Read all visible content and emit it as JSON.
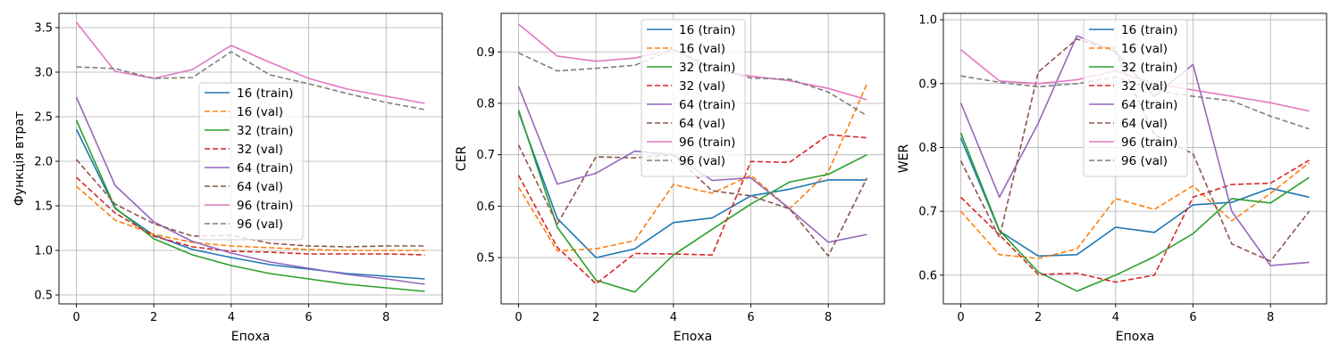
{
  "colors": {
    "c16": "#1f77b4",
    "c32": "#2ca02c",
    "c64": "#9467bd",
    "c96": "#e377c2",
    "v16": "#ff7f0e",
    "v32": "#d62728",
    "v64": "#8c564b",
    "v96": "#7f7f7f",
    "grid": "#b0b0b0",
    "axes": "#000000"
  },
  "chart_data": [
    {
      "type": "line",
      "xlabel": "Епоха",
      "ylabel": "Функція втрат",
      "xlim": [
        -0.45,
        9.45
      ],
      "ylim": [
        0.4,
        3.66
      ],
      "xticks": [
        0,
        2,
        4,
        6,
        8
      ],
      "xtick_labels": [
        "0",
        "2",
        "4",
        "6",
        "8"
      ],
      "yticks": [
        0.5,
        1.0,
        1.5,
        2.0,
        2.5,
        3.0,
        3.5
      ],
      "ytick_labels": [
        "0.5",
        "1.0",
        "1.5",
        "2.0",
        "2.5",
        "3.0",
        "3.5"
      ],
      "grid": true,
      "legend_position": "center",
      "x": [
        0,
        1,
        2,
        3,
        4,
        5,
        6,
        7,
        8,
        9
      ],
      "series": [
        {
          "name": "16 (train)",
          "color": "#1f77b4",
          "style": "solid",
          "values": [
            2.36,
            1.47,
            1.17,
            1.01,
            0.92,
            0.84,
            0.79,
            0.74,
            0.71,
            0.68
          ]
        },
        {
          "name": "16 (val)",
          "color": "#ff7f0e",
          "style": "dashed",
          "values": [
            1.72,
            1.34,
            1.18,
            1.09,
            1.05,
            1.03,
            1.01,
            1.0,
            1.0,
            1.0
          ]
        },
        {
          "name": "32 (train)",
          "color": "#2ca02c",
          "style": "solid",
          "values": [
            2.46,
            1.48,
            1.13,
            0.95,
            0.83,
            0.74,
            0.68,
            0.62,
            0.58,
            0.54
          ]
        },
        {
          "name": "32 (val)",
          "color": "#d62728",
          "style": "dashed",
          "values": [
            1.82,
            1.42,
            1.16,
            1.04,
            0.99,
            0.98,
            0.96,
            0.96,
            0.96,
            0.95
          ]
        },
        {
          "name": "64 (train)",
          "color": "#9467bd",
          "style": "solid",
          "values": [
            2.72,
            1.73,
            1.32,
            1.1,
            0.97,
            0.87,
            0.8,
            0.73,
            0.68,
            0.62
          ]
        },
        {
          "name": "64 (val)",
          "color": "#8c564b",
          "style": "dashed",
          "values": [
            2.02,
            1.52,
            1.3,
            1.16,
            1.17,
            1.08,
            1.05,
            1.04,
            1.05,
            1.05
          ]
        },
        {
          "name": "96 (train)",
          "color": "#e377c2",
          "style": "solid",
          "values": [
            3.56,
            3.01,
            2.93,
            3.03,
            3.3,
            3.11,
            2.93,
            2.81,
            2.73,
            2.65
          ]
        },
        {
          "name": "96 (val)",
          "color": "#7f7f7f",
          "style": "dashed",
          "values": [
            3.06,
            3.04,
            2.93,
            2.94,
            3.23,
            2.97,
            2.87,
            2.76,
            2.66,
            2.58
          ]
        }
      ]
    },
    {
      "type": "line",
      "xlabel": "Епоха",
      "ylabel": "CER",
      "xlim": [
        -0.45,
        9.45
      ],
      "ylim": [
        0.41,
        0.975
      ],
      "xticks": [
        0,
        2,
        4,
        6,
        8
      ],
      "xtick_labels": [
        "0",
        "2",
        "4",
        "6",
        "8"
      ],
      "yticks": [
        0.5,
        0.6,
        0.7,
        0.8,
        0.9
      ],
      "ytick_labels": [
        "0.5",
        "0.6",
        "0.7",
        "0.8",
        "0.9"
      ],
      "grid": true,
      "legend_position": "upper center",
      "x": [
        0,
        1,
        2,
        3,
        4,
        5,
        6,
        7,
        8,
        9
      ],
      "series": [
        {
          "name": "16 (train)",
          "color": "#1f77b4",
          "style": "solid",
          "values": [
            0.783,
            0.576,
            0.5,
            0.517,
            0.568,
            0.577,
            0.62,
            0.633,
            0.651,
            0.651
          ]
        },
        {
          "name": "16 (val)",
          "color": "#ff7f0e",
          "style": "dashed",
          "values": [
            0.637,
            0.513,
            0.517,
            0.533,
            0.642,
            0.625,
            0.66,
            0.595,
            0.667,
            0.838
          ]
        },
        {
          "name": "32 (train)",
          "color": "#2ca02c",
          "style": "solid",
          "values": [
            0.787,
            0.559,
            0.456,
            0.433,
            0.505,
            0.555,
            0.604,
            0.647,
            0.662,
            0.7
          ]
        },
        {
          "name": "32 (val)",
          "color": "#d62728",
          "style": "dashed",
          "values": [
            0.66,
            0.52,
            0.449,
            0.508,
            0.507,
            0.505,
            0.687,
            0.685,
            0.739,
            0.733
          ]
        },
        {
          "name": "64 (train)",
          "color": "#9467bd",
          "style": "solid",
          "values": [
            0.833,
            0.643,
            0.664,
            0.707,
            0.7,
            0.65,
            0.655,
            0.595,
            0.53,
            0.545
          ]
        },
        {
          "name": "64 (val)",
          "color": "#8c564b",
          "style": "dashed",
          "values": [
            0.719,
            0.565,
            0.696,
            0.694,
            0.7,
            0.63,
            0.62,
            0.595,
            0.503,
            0.655
          ]
        },
        {
          "name": "96 (train)",
          "color": "#e377c2",
          "style": "solid",
          "values": [
            0.954,
            0.892,
            0.882,
            0.888,
            0.905,
            0.866,
            0.853,
            0.844,
            0.829,
            0.807
          ]
        },
        {
          "name": "96 (val)",
          "color": "#7f7f7f",
          "style": "dashed",
          "values": [
            0.898,
            0.863,
            0.868,
            0.874,
            0.905,
            0.87,
            0.849,
            0.847,
            0.822,
            0.776
          ]
        }
      ]
    },
    {
      "type": "line",
      "xlabel": "Епоха",
      "ylabel": "WER",
      "xlim": [
        -0.45,
        9.45
      ],
      "ylim": [
        0.555,
        1.01
      ],
      "xticks": [
        0,
        2,
        4,
        6,
        8
      ],
      "xtick_labels": [
        "0",
        "2",
        "4",
        "6",
        "8"
      ],
      "yticks": [
        0.6,
        0.7,
        0.8,
        0.9,
        1.0
      ],
      "ytick_labels": [
        "0.6",
        "0.7",
        "0.8",
        "0.9",
        "1.0"
      ],
      "grid": true,
      "legend_position": "upper center",
      "x": [
        0,
        1,
        2,
        3,
        4,
        5,
        6,
        7,
        8,
        9
      ],
      "series": [
        {
          "name": "16 (train)",
          "color": "#1f77b4",
          "style": "solid",
          "values": [
            0.815,
            0.669,
            0.63,
            0.632,
            0.675,
            0.667,
            0.71,
            0.714,
            0.736,
            0.722
          ]
        },
        {
          "name": "16 (val)",
          "color": "#ff7f0e",
          "style": "dashed",
          "values": [
            0.7,
            0.632,
            0.626,
            0.641,
            0.72,
            0.703,
            0.74,
            0.685,
            0.728,
            0.776
          ]
        },
        {
          "name": "32 (train)",
          "color": "#2ca02c",
          "style": "solid",
          "values": [
            0.823,
            0.67,
            0.605,
            0.575,
            0.6,
            0.629,
            0.665,
            0.72,
            0.713,
            0.753
          ]
        },
        {
          "name": "32 (val)",
          "color": "#d62728",
          "style": "dashed",
          "values": [
            0.722,
            0.663,
            0.601,
            0.603,
            0.589,
            0.6,
            0.722,
            0.742,
            0.744,
            0.78
          ]
        },
        {
          "name": "64 (train)",
          "color": "#9467bd",
          "style": "solid",
          "values": [
            0.87,
            0.722,
            0.838,
            0.975,
            0.95,
            0.88,
            0.93,
            0.7,
            0.615,
            0.62
          ]
        },
        {
          "name": "64 (val)",
          "color": "#8c564b",
          "style": "dashed",
          "values": [
            0.779,
            0.659,
            0.918,
            0.97,
            0.95,
            0.82,
            0.79,
            0.649,
            0.622,
            0.7
          ]
        },
        {
          "name": "96 (train)",
          "color": "#e377c2",
          "style": "solid",
          "values": [
            0.953,
            0.904,
            0.9,
            0.906,
            0.92,
            0.9,
            0.89,
            0.88,
            0.87,
            0.857
          ]
        },
        {
          "name": "96 (val)",
          "color": "#7f7f7f",
          "style": "dashed",
          "values": [
            0.912,
            0.902,
            0.895,
            0.9,
            0.91,
            0.89,
            0.88,
            0.873,
            0.849,
            0.829
          ]
        }
      ]
    }
  ]
}
